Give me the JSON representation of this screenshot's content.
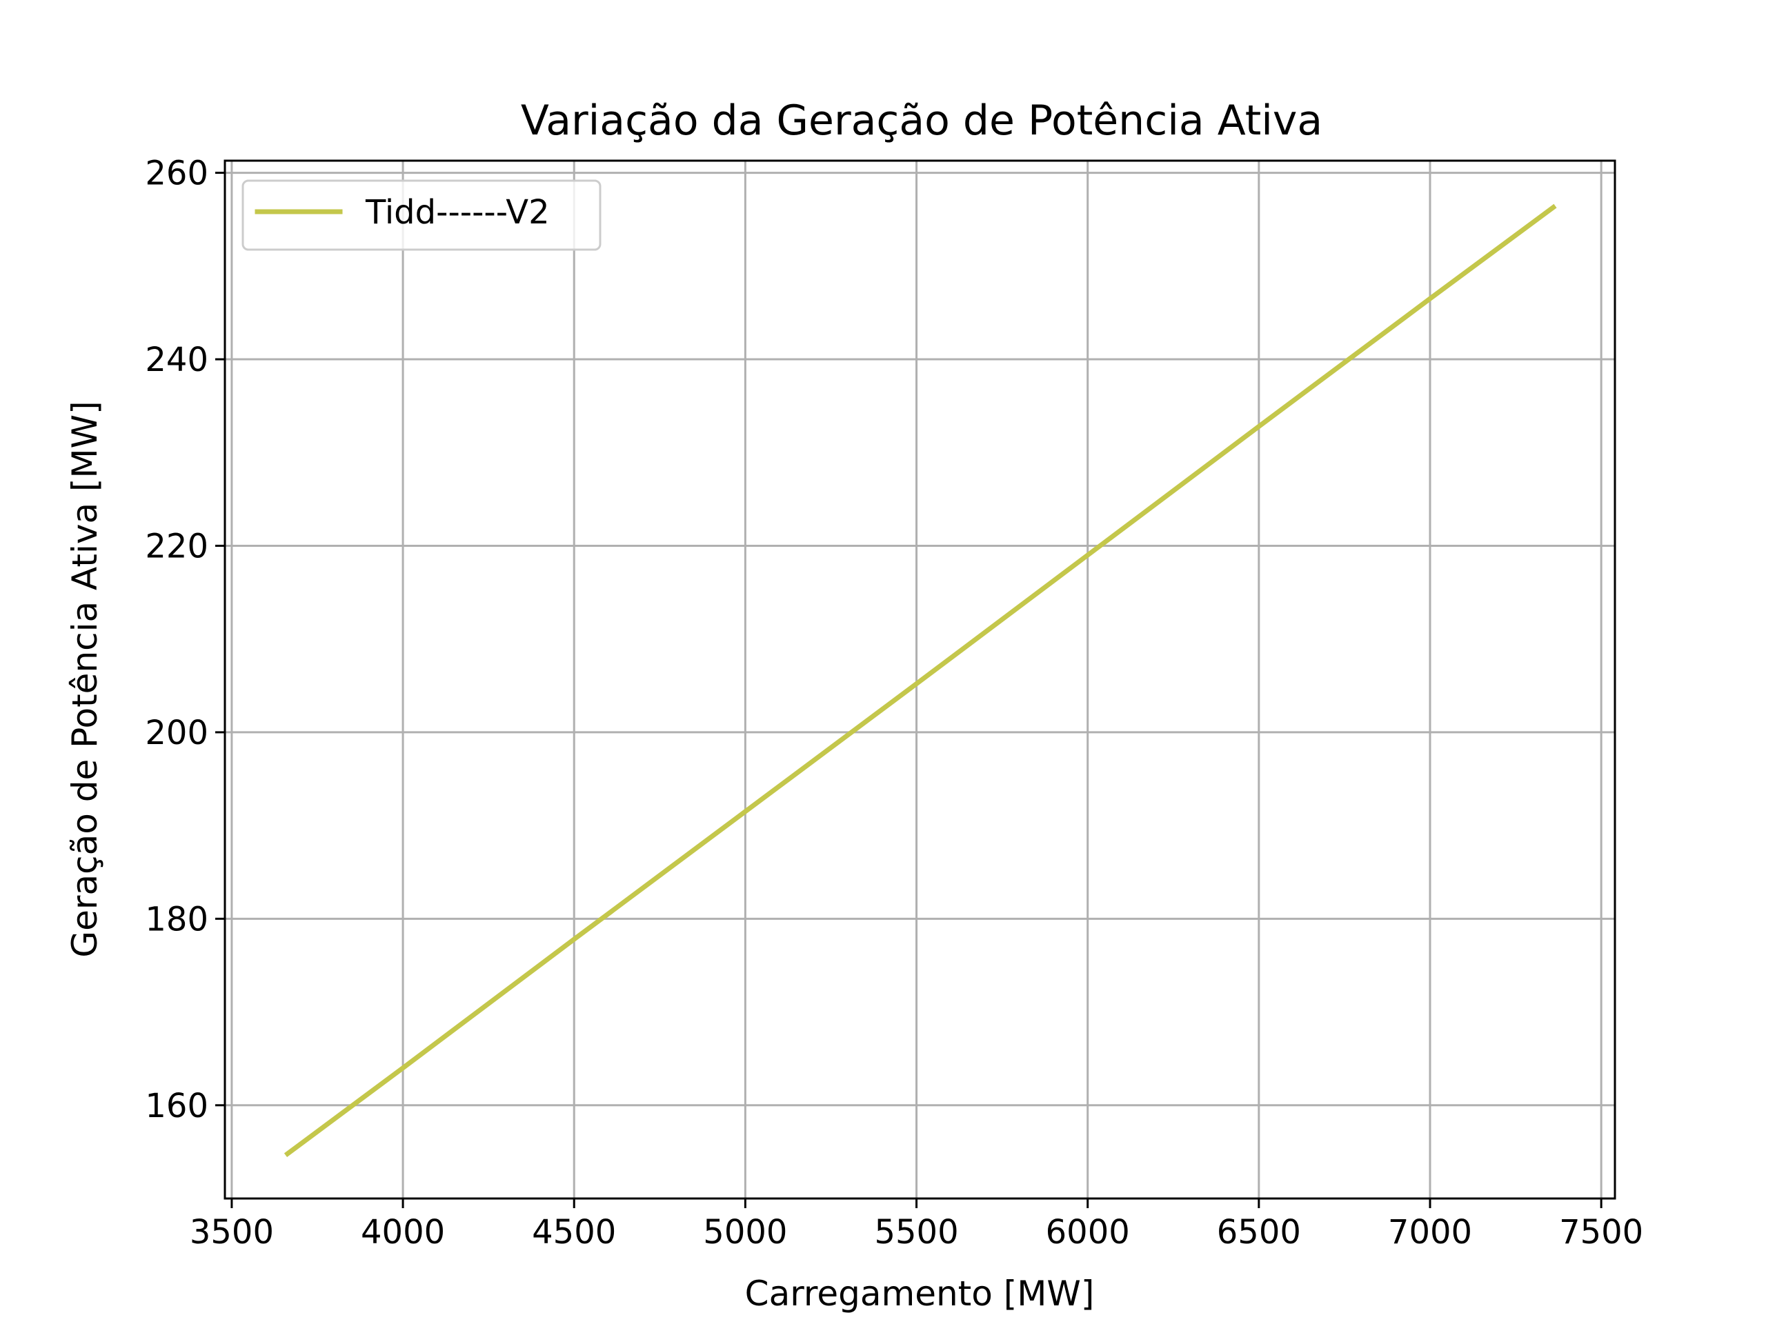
{
  "chart_data": {
    "type": "line",
    "title": "Variação da Geração de Potência Ativa",
    "xlabel": "Carregamento [MW]",
    "ylabel": "Geração de Potência Ativa [MW]",
    "xlim": [
      3480,
      7540
    ],
    "ylim": [
      150,
      261.3
    ],
    "xticks": [
      3500,
      4000,
      4500,
      5000,
      5500,
      6000,
      6500,
      7000,
      7500
    ],
    "yticks": [
      160,
      180,
      200,
      220,
      240,
      260
    ],
    "xtick_labels": [
      "3500",
      "4000",
      "4500",
      "5000",
      "5500",
      "6000",
      "6500",
      "7000",
      "7500"
    ],
    "ytick_labels": [
      "160",
      "180",
      "200",
      "220",
      "240",
      "260"
    ],
    "grid": true,
    "legend_position": "top-left",
    "series": [
      {
        "name": "Tidd------V2",
        "color": "#c4c74b",
        "x": [
          3663,
          4000,
          4500,
          5000,
          5500,
          6000,
          6500,
          7000,
          7360
        ],
        "y": [
          154.8,
          164.0,
          177.8,
          191.5,
          205.2,
          219.0,
          232.8,
          246.5,
          256.3
        ]
      }
    ]
  }
}
